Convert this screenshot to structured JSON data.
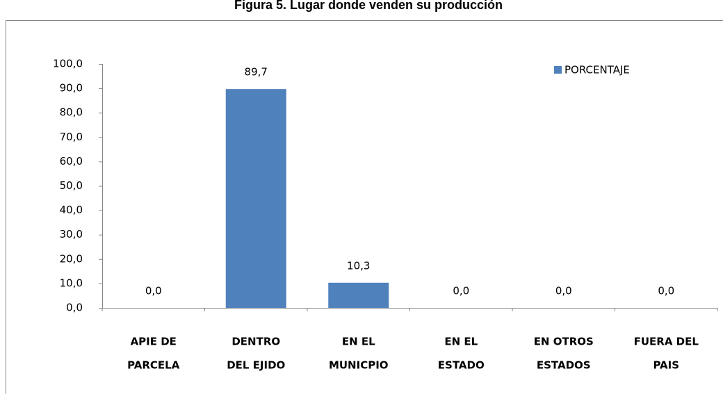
{
  "chart_data": {
    "type": "bar",
    "title": "Figura 5. Lugar donde  venden su producción",
    "categories": [
      [
        "APIE DE",
        "PARCELA"
      ],
      [
        "DENTRO",
        "DEL EJIDO"
      ],
      [
        "EN EL",
        "MUNICPIO"
      ],
      [
        "EN EL",
        "ESTADO"
      ],
      [
        "EN OTROS",
        "ESTADOS"
      ],
      [
        "FUERA DEL",
        "PAIS"
      ]
    ],
    "series": [
      {
        "name": "PORCENTAJE",
        "color": "#4f81bd",
        "values": [
          0,
          89.7,
          10.3,
          0,
          0,
          0
        ],
        "value_labels": [
          "0,0",
          "89,7",
          "10,3",
          "0,0",
          "0,0",
          "0,0"
        ]
      }
    ],
    "ylim": [
      0,
      100
    ],
    "yticks": [
      {
        "value": 0,
        "label": "0,0"
      },
      {
        "value": 10,
        "label": "10,0"
      },
      {
        "value": 20,
        "label": "20,0"
      },
      {
        "value": 30,
        "label": "30,0"
      },
      {
        "value": 40,
        "label": "40,0"
      },
      {
        "value": 50,
        "label": "50,0"
      },
      {
        "value": 60,
        "label": "60,0"
      },
      {
        "value": 70,
        "label": "70,0"
      },
      {
        "value": 80,
        "label": "80,0"
      },
      {
        "value": 90,
        "label": "90,0"
      },
      {
        "value": 100,
        "label": "100,0"
      }
    ],
    "grid": false,
    "legend": "top-right"
  }
}
